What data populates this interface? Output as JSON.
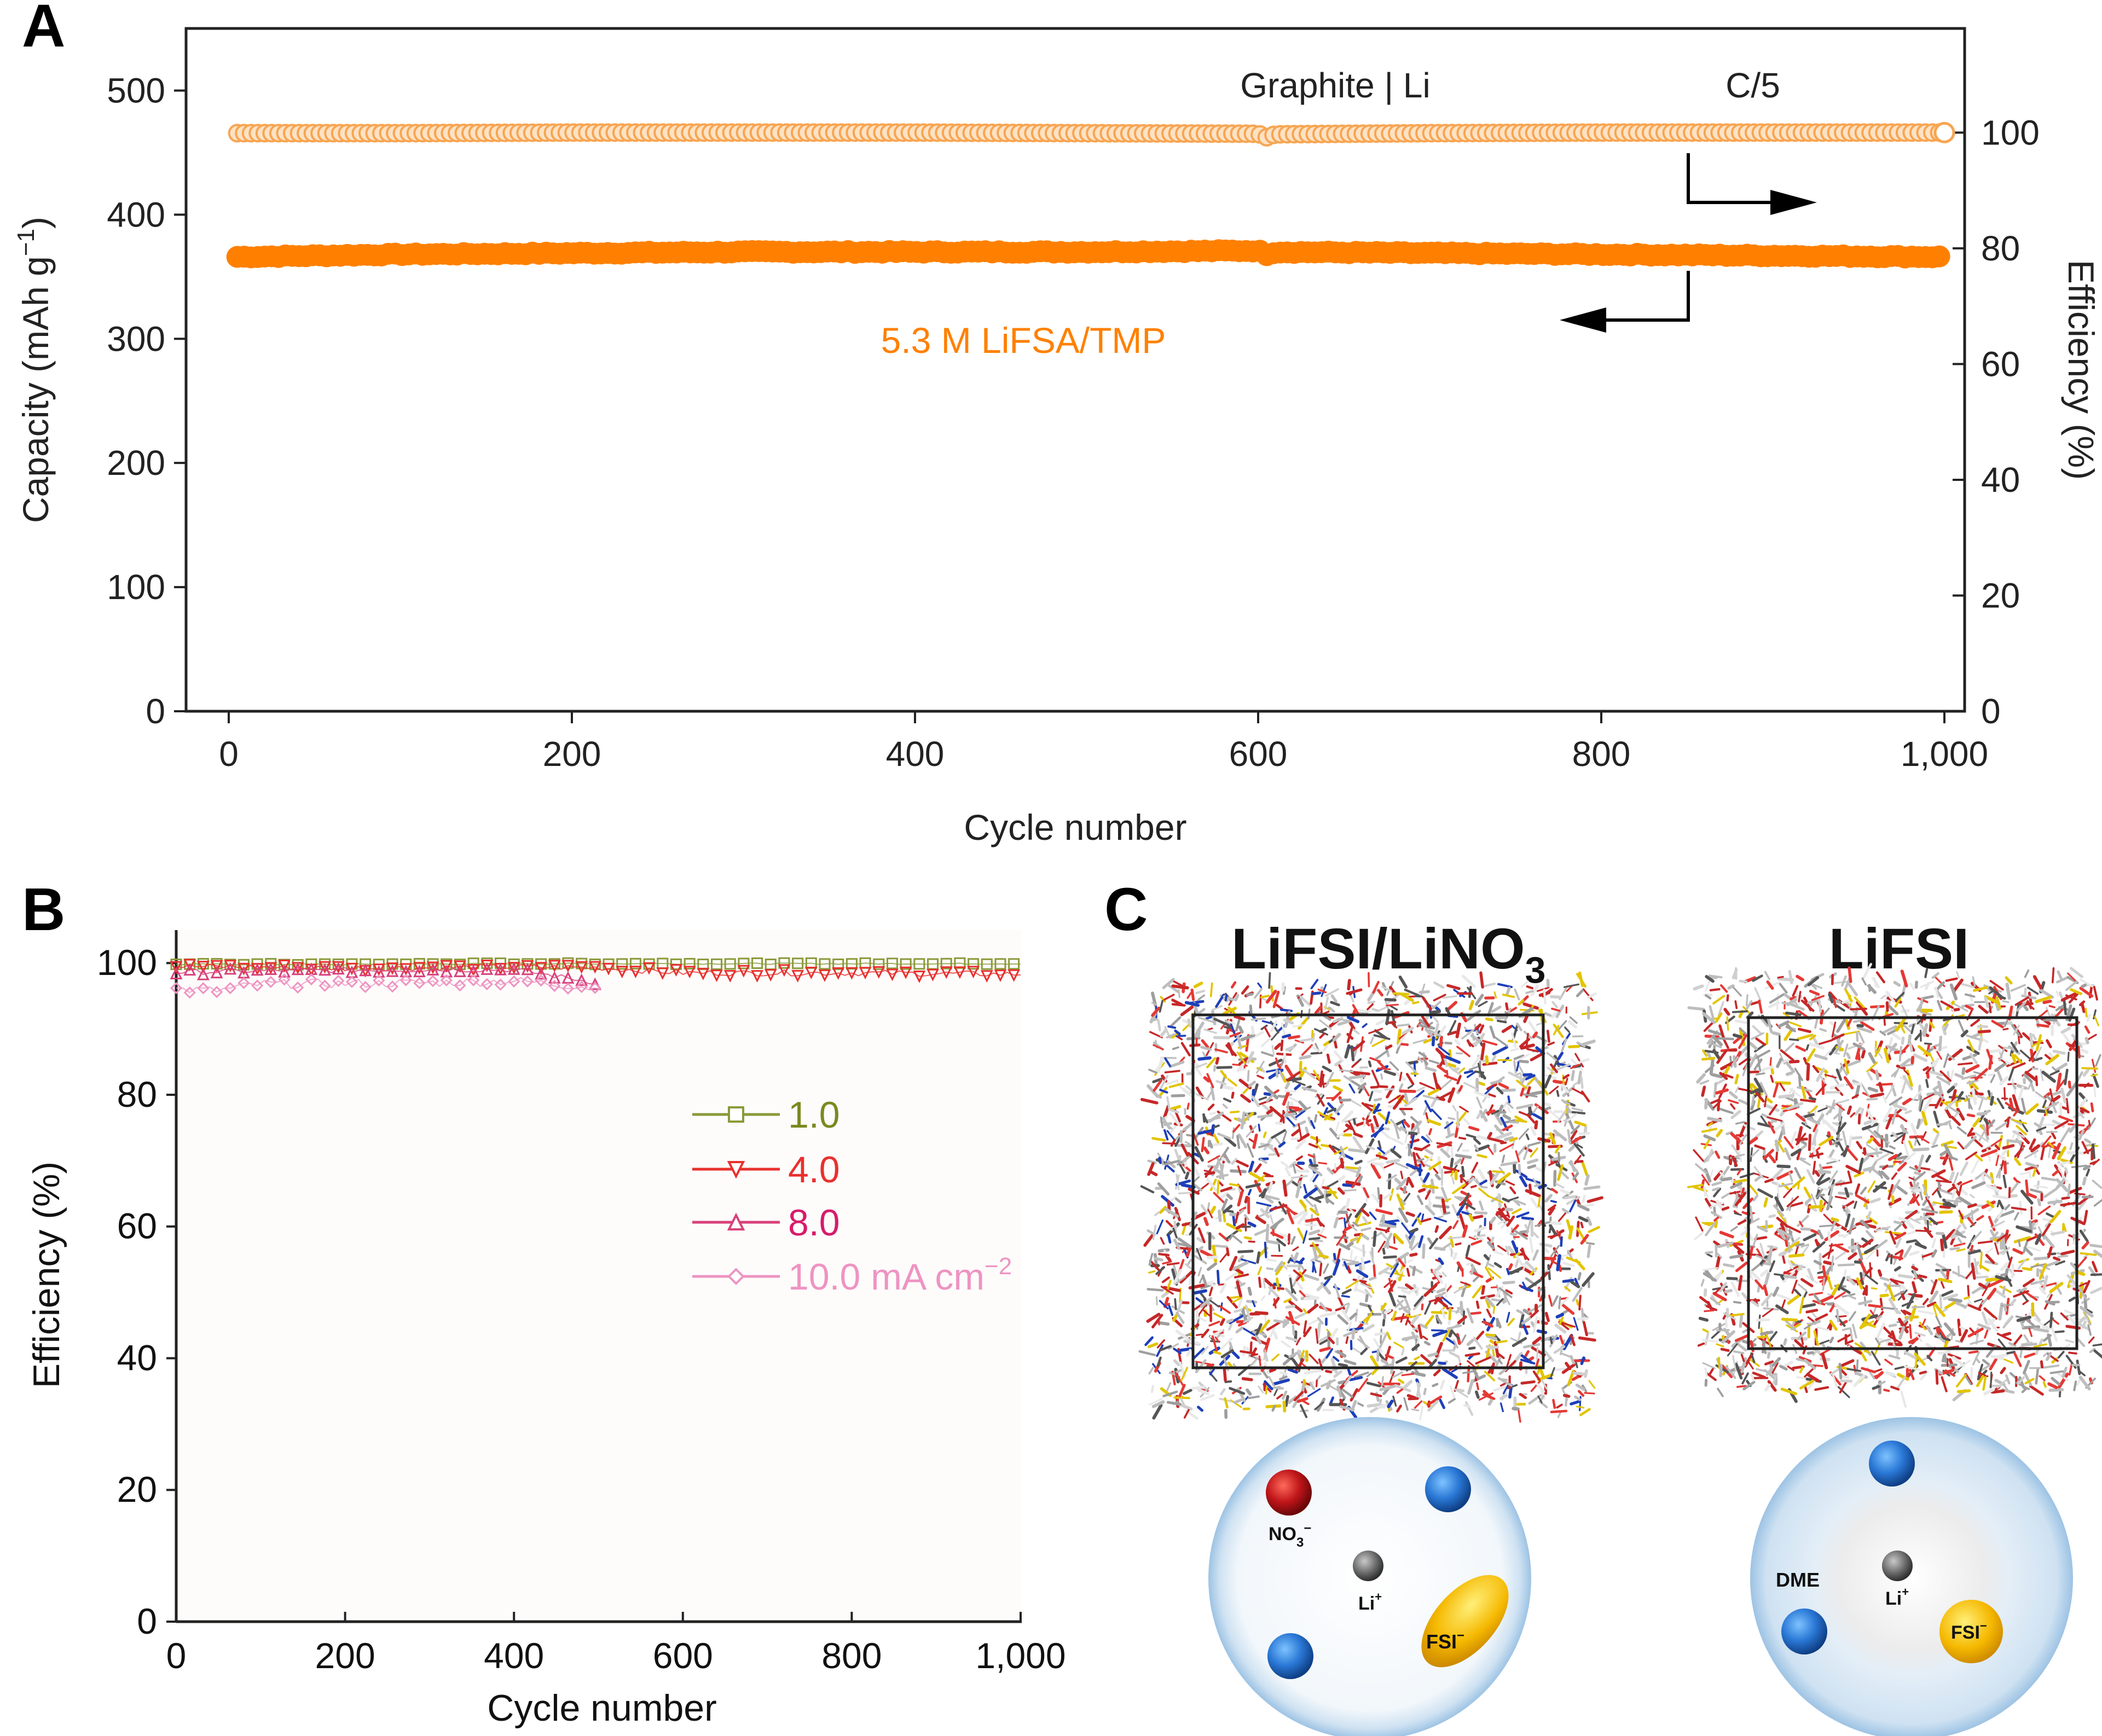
{
  "panel_labels": [
    "A",
    "B",
    "C"
  ],
  "chart_data": [
    {
      "type": "scatter",
      "panel": "A",
      "xlabel": "Cycle number",
      "ylabel": "Capacity (mAh g",
      "ylabel_sup": "−1",
      "ylabel_close": ")",
      "y2label": "Efficiency (%)",
      "xlim": [
        0,
        1000
      ],
      "ylim": [
        0,
        550
      ],
      "y2lim": [
        0,
        118
      ],
      "x_ticks": [
        "0",
        "200",
        "400",
        "600",
        "800",
        "1,000"
      ],
      "y_ticks": [
        "0",
        "100",
        "200",
        "300",
        "400",
        "500"
      ],
      "y2_ticks": [
        "0",
        "20",
        "40",
        "60",
        "80",
        "100"
      ],
      "annotations": [
        "Graphite | Li",
        "C/5"
      ],
      "series_label": "5.3 M LiFSA/TMP",
      "colors": {
        "capacity": "#ff8000",
        "efficiency": "#f7a552"
      },
      "series": [
        {
          "name": "Capacity",
          "axis": "left",
          "x": [
            5,
            100,
            200,
            300,
            400,
            500,
            600,
            605,
            610,
            700,
            800,
            900,
            1000
          ],
          "y": [
            366,
            368,
            369,
            370,
            370,
            370,
            371,
            368,
            370,
            369,
            368,
            367,
            366
          ]
        },
        {
          "name": "Efficiency",
          "axis": "right",
          "x": [
            5,
            100,
            200,
            300,
            400,
            500,
            600,
            605,
            610,
            700,
            800,
            900,
            1000
          ],
          "y": [
            99.9,
            99.9,
            100,
            100,
            100,
            99.9,
            99.8,
            99.2,
            99.7,
            99.9,
            100,
            100,
            100
          ]
        }
      ]
    },
    {
      "type": "scatter",
      "panel": "B",
      "xlabel": "Cycle number",
      "ylabel": "Efficiency (%)",
      "xlim": [
        0,
        1000
      ],
      "ylim": [
        0,
        105
      ],
      "x_ticks": [
        "0",
        "200",
        "400",
        "600",
        "800",
        "1,000"
      ],
      "y_ticks": [
        "0",
        "20",
        "40",
        "60",
        "80",
        "100"
      ],
      "legend_position": "center-right",
      "series": [
        {
          "name": "1.0",
          "color": "#8a9a3a",
          "marker": "square",
          "x": [
            0,
            200,
            400,
            600,
            800,
            1000
          ],
          "y": [
            99.8,
            99.8,
            99.9,
            99.9,
            99.9,
            99.9
          ]
        },
        {
          "name": "4.0",
          "color": "#e8302e",
          "marker": "triangle-down",
          "x": [
            0,
            200,
            400,
            500,
            600,
            800,
            1000
          ],
          "y": [
            99.5,
            99.2,
            99.4,
            99.3,
            98.5,
            98.5,
            98.3
          ]
        },
        {
          "name": "8.0",
          "color": "#d8407a",
          "marker": "triangle-up",
          "x": [
            0,
            100,
            200,
            300,
            400,
            500
          ],
          "y": [
            98.6,
            98.8,
            98.9,
            99.0,
            99.0,
            97.0
          ]
        },
        {
          "name": "10.0 mA cm",
          "name_sup": "−2",
          "color": "#ee94c2",
          "marker": "diamond",
          "x": [
            0,
            50,
            100,
            200,
            300,
            400,
            480,
            500
          ],
          "y": [
            96.0,
            95.8,
            96.8,
            96.9,
            97.0,
            97.3,
            96.5,
            96.0
          ]
        }
      ]
    }
  ],
  "panel_c": {
    "left_title": "LiFSI/LiNO",
    "left_title_sub": "3",
    "right_title": "LiFSI",
    "left_labels": {
      "no3": "NO",
      "no3_sub": "3",
      "no3_sup": "−",
      "li": "Li",
      "li_sup": "+",
      "fsi": "FSI",
      "fsi_sup": "−"
    },
    "right_labels": {
      "dme": "DME",
      "li": "Li",
      "li_sup": "+",
      "fsi": "FSI",
      "fsi_sup": "−"
    },
    "colors": {
      "nitrate": "#c0161a",
      "solvent": "#2a78d6",
      "anion": "#f5b800",
      "li": "#6a6a6a",
      "shell": "#bcd8ef"
    }
  }
}
